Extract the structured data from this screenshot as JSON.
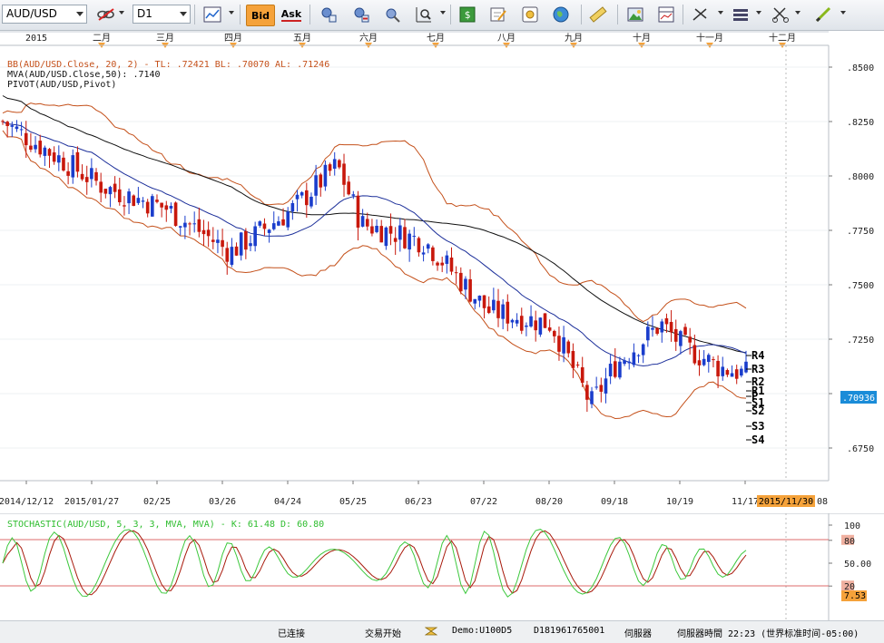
{
  "toolbar": {
    "symbol": "AUD/USD",
    "timeframe": "D1",
    "bid_label": "Bid",
    "ask_label": "Ask"
  },
  "chart": {
    "months": [
      "2015",
      "二月",
      "三月",
      "四月",
      "五月",
      "六月",
      "七月",
      "八月",
      "九月",
      "十月",
      "十一月",
      "十二月"
    ],
    "date_ticks": [
      "2014/12/12",
      "2015/01/27",
      "02/25",
      "03/26",
      "04/24",
      "05/25",
      "06/23",
      "07/22",
      "08/20",
      "09/18",
      "10/19",
      "11/17"
    ],
    "date_highlight": "2015/11/30",
    "date_tail": "08",
    "price_ticks": [
      ".8500",
      ".8250",
      ".8000",
      ".7750",
      ".7500",
      ".7250",
      ".7000",
      ".6750"
    ],
    "last_price": ".70936",
    "indicator_bb": "BB(AUD/USD.Close, 20, 2) - TL: .72421  BL: .70070  AL: .71246",
    "indicator_mva": "MVA(AUD/USD.Close,50): .7140",
    "indicator_pivot": "PIVOT(AUD/USD,Pivot)",
    "pivot_labels": [
      "R4",
      "R3",
      "R2",
      "R1",
      "P",
      "S1",
      "S2",
      "S3",
      "S4"
    ]
  },
  "oscillator": {
    "title": "STOCHASTIC(AUD/USD, 5, 3, 3, MVA, MVA) - K: 61.48  D: 60.80",
    "ticks": [
      "100",
      "80",
      "50.00",
      "20"
    ],
    "last_value": "7.53"
  },
  "status": {
    "connection": "已连接",
    "trading": "交易开始",
    "account": "Demo:U100D5",
    "account_id": "D181961765001",
    "server": "伺服器",
    "server_time": "伺服器時間 22:23 (世界标准时间-05:00)"
  },
  "colors": {
    "bull": "#1a3dcc",
    "bear": "#c8180c",
    "bb": "#c4501a",
    "mva": "#101010",
    "ma20": "#1c2f9a",
    "stoch_k": "#3cc83c",
    "stoch_d": "#a81a0c",
    "level_line": "#d23a3a",
    "highlight": "#f5a23a",
    "price_box": "#1a8cd8"
  },
  "chart_data": {
    "type": "candlestick",
    "symbol": "AUD/USD",
    "timeframe": "D1",
    "y_range": [
      0.66,
      0.86
    ],
    "close_path": [
      {
        "date": "2014-12-12",
        "close": 0.825
      },
      {
        "date": "2015-01-27",
        "close": 0.795
      },
      {
        "date": "2015-02-25",
        "close": 0.785
      },
      {
        "date": "2015-03-26",
        "close": 0.765
      },
      {
        "date": "2015-04-24",
        "close": 0.785
      },
      {
        "date": "2015-05-14",
        "close": 0.805
      },
      {
        "date": "2015-05-25",
        "close": 0.778
      },
      {
        "date": "2015-06-23",
        "close": 0.77
      },
      {
        "date": "2015-07-22",
        "close": 0.738
      },
      {
        "date": "2015-08-20",
        "close": 0.732
      },
      {
        "date": "2015-09-07",
        "close": 0.695
      },
      {
        "date": "2015-09-18",
        "close": 0.713
      },
      {
        "date": "2015-10-09",
        "close": 0.732
      },
      {
        "date": "2015-10-19",
        "close": 0.722
      },
      {
        "date": "2015-11-05",
        "close": 0.712
      },
      {
        "date": "2015-11-17",
        "close": 0.709
      }
    ]
  }
}
